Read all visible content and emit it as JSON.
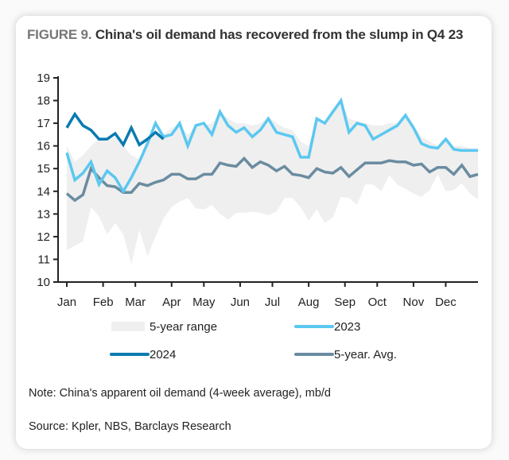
{
  "figure": {
    "label": "FIGURE 9.",
    "title": "China's oil demand has recovered from the slump in Q4 23"
  },
  "note": "Note: China's apparent oil demand (4-week average), mb/d",
  "source": "Source: Kpler, NBS, Barclays Research",
  "colors": {
    "range": "#efefef",
    "y2023": "#5bc8f0",
    "y2024": "#0a7bb0",
    "avg": "#6a8ca0",
    "axis": "#222222"
  },
  "chart_data": {
    "type": "line",
    "title": "China's oil demand has recovered from the slump in Q4 23",
    "xlabel": "",
    "ylabel": "mb/d",
    "ylim": [
      10,
      19
    ],
    "yticks": [
      10,
      11,
      12,
      13,
      14,
      15,
      16,
      17,
      18,
      19
    ],
    "xticks": [
      "Jan",
      "Feb",
      "Mar",
      "Apr",
      "May",
      "Jun",
      "Jul",
      "Aug",
      "Sep",
      "Oct",
      "Nov",
      "Dec"
    ],
    "xtick_weeks": [
      0,
      4.5,
      8.5,
      13,
      17,
      21.5,
      25.5,
      30,
      34.5,
      38.5,
      43,
      47
    ],
    "weeks": 52,
    "grid": false,
    "legend_position": "bottom",
    "legend": [
      {
        "key": "range",
        "label": "5-year range"
      },
      {
        "key": "y2023",
        "label": "2023"
      },
      {
        "key": "y2024",
        "label": "2024"
      },
      {
        "key": "avg",
        "label": "5-year. Avg."
      }
    ],
    "series": [
      {
        "name": "2023",
        "key": "y2023",
        "values": [
          15.7,
          14.5,
          14.8,
          15.3,
          14.3,
          14.9,
          14.6,
          14.0,
          14.6,
          15.3,
          16.1,
          17.0,
          16.4,
          16.5,
          17.0,
          16.0,
          16.9,
          17.0,
          16.5,
          17.5,
          16.9,
          16.6,
          16.8,
          16.4,
          16.7,
          17.2,
          16.6,
          16.5,
          16.4,
          15.5,
          15.5,
          17.2,
          17.0,
          17.5,
          18.0,
          16.6,
          17.0,
          16.9,
          16.3,
          16.5,
          16.7,
          16.9,
          17.35,
          16.8,
          16.1,
          15.95,
          15.9,
          16.3,
          15.85,
          15.8,
          15.8,
          15.8
        ]
      },
      {
        "name": "2024",
        "key": "y2024",
        "values": [
          16.8,
          17.4,
          16.9,
          16.7,
          16.3,
          16.3,
          16.55,
          16.05,
          16.8,
          16.05,
          16.3,
          16.6,
          16.3
        ]
      },
      {
        "name": "5-year. Avg.",
        "key": "avg",
        "values": [
          13.9,
          13.6,
          13.85,
          15.0,
          14.6,
          14.25,
          14.2,
          13.95,
          13.95,
          14.35,
          14.25,
          14.4,
          14.5,
          14.75,
          14.75,
          14.55,
          14.55,
          14.75,
          14.75,
          15.25,
          15.15,
          15.1,
          15.45,
          15.05,
          15.3,
          15.15,
          14.9,
          15.1,
          14.75,
          14.7,
          14.6,
          15.0,
          14.85,
          14.8,
          15.05,
          14.65,
          14.95,
          15.25,
          15.25,
          15.25,
          15.35,
          15.3,
          15.3,
          15.15,
          15.2,
          14.85,
          15.05,
          15.05,
          14.75,
          15.15,
          14.65,
          14.75
        ]
      },
      {
        "name": "5-year range (low)",
        "key": "range_low",
        "values": [
          11.4,
          11.6,
          11.8,
          13.3,
          12.9,
          12.1,
          12.6,
          12.1,
          10.8,
          12.3,
          11.15,
          12.0,
          12.8,
          13.3,
          13.55,
          13.7,
          13.25,
          13.2,
          13.4,
          13.0,
          12.75,
          13.05,
          13.05,
          13.1,
          13.05,
          12.95,
          13.1,
          13.7,
          13.7,
          13.3,
          12.7,
          13.2,
          12.6,
          12.85,
          13.75,
          13.7,
          13.4,
          14.3,
          14.3,
          14.0,
          14.7,
          14.3,
          14.1,
          13.9,
          13.75,
          14.05,
          14.75,
          14.0,
          14.05,
          14.35,
          13.9,
          13.65
        ]
      },
      {
        "name": "5-year range (high)",
        "key": "range_high",
        "values": [
          16.0,
          15.3,
          15.6,
          16.0,
          16.3,
          16.2,
          16.4,
          16.0,
          15.6,
          15.4,
          16.4,
          16.5,
          16.5,
          16.8,
          16.9,
          16.5,
          16.9,
          16.9,
          17.0,
          17.5,
          17.2,
          17.0,
          17.0,
          16.9,
          17.0,
          17.3,
          17.0,
          16.8,
          16.7,
          16.2,
          16.0,
          17.2,
          17.1,
          17.5,
          18.0,
          17.2,
          17.1,
          17.0,
          16.9,
          16.9,
          17.0,
          17.0,
          17.35,
          16.9,
          16.4,
          16.2,
          16.0,
          16.3,
          16.0,
          16.0,
          15.9,
          15.9
        ]
      }
    ]
  }
}
